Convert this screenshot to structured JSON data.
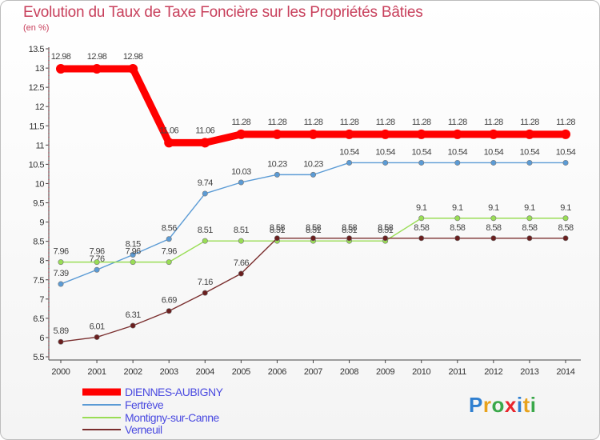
{
  "chart_data": {
    "type": "line",
    "title": "Evolution du Taux de Taxe Foncière sur les Propriétés Bâties",
    "ylabel": "(en %)",
    "xlabel": "",
    "categories": [
      "2000",
      "2001",
      "2002",
      "2003",
      "2004",
      "2005",
      "2006",
      "2007",
      "2008",
      "2009",
      "2010",
      "2011",
      "2012",
      "2013",
      "2014"
    ],
    "ylim": [
      5.5,
      13.5
    ],
    "yticks": [
      "5.5",
      "6",
      "6.5",
      "7",
      "7.5",
      "8",
      "8.5",
      "9",
      "9.5",
      "10",
      "10.5",
      "11",
      "11.5",
      "12",
      "12.5",
      "13",
      "13.5"
    ],
    "grid": false,
    "series": [
      {
        "name": "DIENNES-AUBIGNY",
        "color": "#ff0000",
        "values": [
          12.98,
          12.98,
          12.98,
          11.06,
          11.06,
          11.28,
          11.28,
          11.28,
          11.28,
          11.28,
          11.28,
          11.28,
          11.28,
          11.28,
          11.28
        ],
        "labels": [
          "12.98",
          "12.98",
          "12.98",
          "11.06",
          "11.06",
          "11.28",
          "11.28",
          "11.28",
          "11.28",
          "11.28",
          "11.28",
          "11.28",
          "11.28",
          "11.28",
          "11.28"
        ]
      },
      {
        "name": "Fertrève",
        "color": "#5b9bd5",
        "values": [
          7.39,
          7.76,
          8.15,
          8.56,
          9.74,
          10.03,
          10.23,
          10.23,
          10.54,
          10.54,
          10.54,
          10.54,
          10.54,
          10.54,
          10.54
        ],
        "labels": [
          "7.39",
          "7.76",
          "8.15",
          "8.56",
          "9.74",
          "10.03",
          "10.23",
          "10.23",
          "10.54",
          "10.54",
          "10.54",
          "10.54",
          "10.54",
          "10.54",
          "10.54"
        ]
      },
      {
        "name": "Montigny-sur-Canne",
        "color": "#99dd55",
        "values": [
          7.96,
          7.96,
          7.96,
          7.96,
          8.51,
          8.51,
          8.51,
          8.51,
          8.51,
          8.51,
          9.1,
          9.1,
          9.1,
          9.1,
          9.1
        ],
        "labels": [
          "7.96",
          "7.96",
          "7.96",
          "7.96",
          "8.51",
          "8.51",
          "8.51",
          "8.51",
          "8.51",
          "8.51",
          "9.1",
          "9.1",
          "9.1",
          "9.1",
          "9.1"
        ]
      },
      {
        "name": "Verneuil",
        "color": "#7a2e2e",
        "values": [
          5.89,
          6.01,
          6.31,
          6.69,
          7.16,
          7.66,
          8.58,
          8.58,
          8.58,
          8.58,
          8.58,
          8.58,
          8.58,
          8.58,
          8.58
        ],
        "labels": [
          "5.89",
          "6.01",
          "6.31",
          "6.69",
          "7.16",
          "7.66",
          "8.58",
          "8.58",
          "8.58",
          "8.58",
          "8.58",
          "8.58",
          "8.58",
          "8.58",
          "8.58"
        ]
      }
    ],
    "legend": {
      "position": "bottom-left"
    }
  },
  "branding": {
    "logo_text": [
      "P",
      "r",
      "o",
      "x",
      "i",
      "t",
      "i"
    ]
  }
}
